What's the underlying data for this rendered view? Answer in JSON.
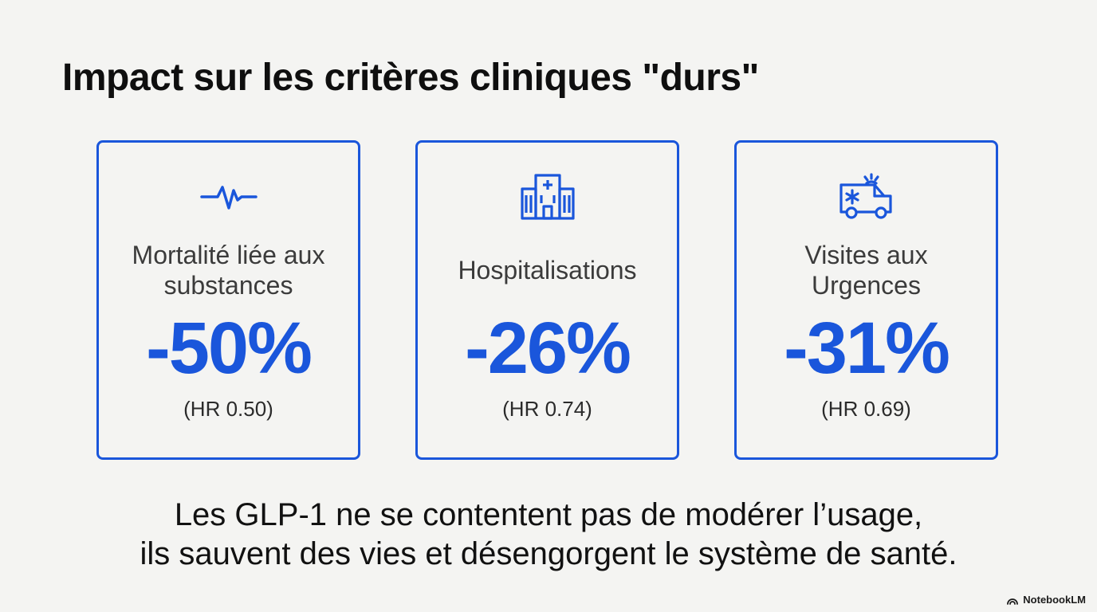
{
  "title": "Impact sur les critères cliniques \"durs\"",
  "accent_color": "#1a56db",
  "cards": [
    {
      "icon": "heartbeat-icon",
      "label": "Mortalité liée aux substances",
      "value": "-50%",
      "hr": "(HR 0.50)"
    },
    {
      "icon": "hospital-icon",
      "label": "Hospitalisations",
      "value": "-26%",
      "hr": "(HR 0.74)"
    },
    {
      "icon": "ambulance-icon",
      "label": "Visites aux Urgences",
      "value": "-31%",
      "hr": "(HR 0.69)"
    }
  ],
  "conclusion": {
    "line1": "Les GLP-1 ne se contentent pas de modérer l’usage,",
    "line2": "ils sauvent des vies et désengorgent le système de santé."
  },
  "brand": {
    "icon": "notebooklm-logo-icon",
    "label": "NotebookLM"
  }
}
